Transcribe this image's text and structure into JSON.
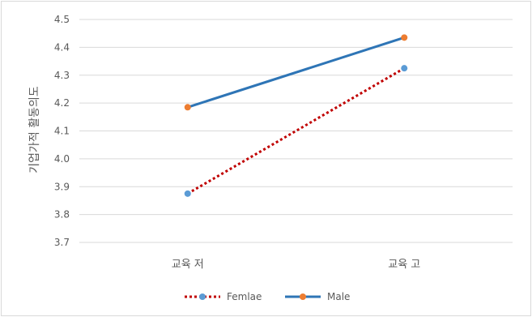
{
  "chart_data": {
    "type": "line",
    "ylabel": "기업가적 활동의도",
    "xlabel": "",
    "categories": [
      "교육 저",
      "교육 고"
    ],
    "ylim": [
      3.7,
      4.5
    ],
    "yticks": [
      "3.7",
      "3.8",
      "3.9",
      "4.0",
      "4.1",
      "4.2",
      "4.3",
      "4.4",
      "4.5"
    ],
    "grid": true,
    "legend_position": "bottom",
    "series": [
      {
        "name": "Femlae",
        "values": [
          3.875,
          4.325
        ],
        "color": "#c00000",
        "marker_color": "#5b9bd5",
        "style": "dotted"
      },
      {
        "name": "Male",
        "values": [
          4.185,
          4.435
        ],
        "color": "#2e75b6",
        "marker_color": "#ed7d31",
        "style": "solid"
      }
    ]
  }
}
